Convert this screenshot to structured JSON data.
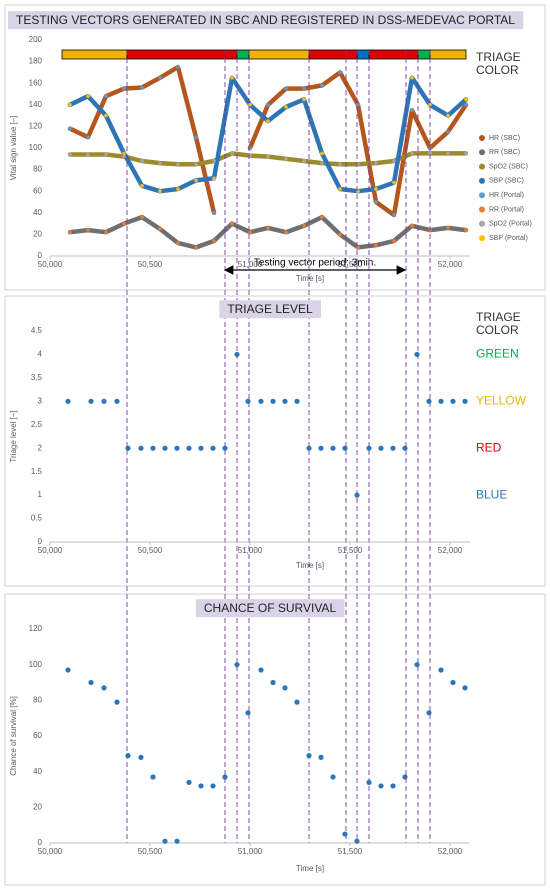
{
  "chart_data": [
    {
      "type": "line",
      "title": "TESTING VECTORS GENERATED IN SBC AND REGISTERED IN DSS-MEDEVAC PORTAL",
      "xlabel": "Time [s]",
      "ylabel": "Vital sign value [–]",
      "x": [
        50100,
        50190,
        50280,
        50370,
        50460,
        50550,
        50640,
        50730,
        50820,
        50910,
        51000,
        51090,
        51180,
        51270,
        51360,
        51450,
        51540,
        51630,
        51720,
        51810,
        51900,
        51990,
        52080
      ],
      "series": [
        {
          "name": "HR (SBC)",
          "color": "#b5561c",
          "style": "line",
          "values": [
            118,
            110,
            148,
            155,
            156,
            165,
            175,
            110,
            40,
            null,
            100,
            140,
            155,
            155,
            158,
            170,
            140,
            50,
            38,
            135,
            100,
            115,
            140
          ]
        },
        {
          "name": "RR (SBC)",
          "color": "#6f6f6f",
          "style": "line",
          "values": [
            22,
            24,
            22,
            30,
            36,
            25,
            12,
            8,
            14,
            30,
            22,
            26,
            22,
            28,
            36,
            20,
            8,
            10,
            14,
            28,
            24,
            26,
            24
          ]
        },
        {
          "name": "SpO2 (SBC)",
          "color": "#9c8a2d",
          "style": "line",
          "values": [
            94,
            94,
            94,
            92,
            88,
            86,
            85,
            85,
            88,
            95,
            93,
            92,
            90,
            88,
            86,
            85,
            85,
            86,
            88,
            95,
            95,
            95,
            95
          ]
        },
        {
          "name": "SBP (SBC)",
          "color": "#2e75b6",
          "style": "line",
          "values": [
            140,
            148,
            130,
            95,
            65,
            60,
            62,
            70,
            72,
            165,
            140,
            125,
            138,
            145,
            95,
            62,
            60,
            62,
            68,
            165,
            140,
            130,
            145
          ]
        },
        {
          "name": "HR (Portal)",
          "color": "#5b9bd5",
          "style": "dots",
          "values": [
            118,
            110,
            148,
            155,
            156,
            165,
            175,
            110,
            40,
            null,
            100,
            140,
            155,
            155,
            158,
            170,
            140,
            50,
            38,
            135,
            100,
            115,
            140
          ]
        },
        {
          "name": "RR (Portal)",
          "color": "#ed7d31",
          "style": "dots",
          "values": [
            22,
            24,
            22,
            30,
            36,
            25,
            12,
            8,
            14,
            30,
            22,
            26,
            22,
            28,
            36,
            20,
            8,
            10,
            14,
            28,
            24,
            26,
            24
          ]
        },
        {
          "name": "SpO2 (Portal)",
          "color": "#a5a5a5",
          "style": "dots",
          "values": [
            94,
            94,
            94,
            92,
            88,
            86,
            85,
            85,
            88,
            95,
            93,
            92,
            90,
            88,
            86,
            85,
            85,
            86,
            88,
            95,
            95,
            95,
            95
          ]
        },
        {
          "name": "SBP (Portal)",
          "color": "#ffc000",
          "style": "dots",
          "values": [
            140,
            148,
            130,
            95,
            65,
            60,
            62,
            70,
            72,
            165,
            140,
            125,
            138,
            145,
            95,
            62,
            60,
            62,
            68,
            165,
            140,
            130,
            145
          ]
        }
      ],
      "xlim": [
        50000,
        52100
      ],
      "ylim": [
        0,
        200
      ],
      "xticks": [
        {
          "value": 50000,
          "label": "50,000"
        },
        {
          "value": 50500,
          "label": "50,500"
        },
        {
          "value": 51000,
          "label": "51,000"
        },
        {
          "value": 51500,
          "label": "51,500"
        },
        {
          "value": 52000,
          "label": "52,000"
        }
      ],
      "yticks": [
        0,
        20,
        40,
        60,
        80,
        100,
        120,
        140,
        160,
        180,
        200
      ],
      "legend": "right",
      "side_label": "TRIAGE COLOR",
      "triage_bar": [
        {
          "start": 50060,
          "end": 50385,
          "color": "#f0b400"
        },
        {
          "start": 50385,
          "end": 50935,
          "color": "#e00000"
        },
        {
          "start": 50935,
          "end": 50995,
          "color": "#00b050"
        },
        {
          "start": 50995,
          "end": 51295,
          "color": "#f0b400"
        },
        {
          "start": 51295,
          "end": 51535,
          "color": "#e00000"
        },
        {
          "start": 51535,
          "end": 51595,
          "color": "#0070c0"
        },
        {
          "start": 51595,
          "end": 51840,
          "color": "#e00000"
        },
        {
          "start": 51840,
          "end": 51900,
          "color": "#00b050"
        },
        {
          "start": 51900,
          "end": 52080,
          "color": "#f0b400"
        }
      ],
      "event_x": [
        50385,
        50875,
        50935,
        50995,
        51295,
        51480,
        51535,
        51595,
        51780,
        51840,
        51900
      ],
      "annotation": {
        "text": "Testing vector period: 3min.",
        "x": [
          50875,
          51775
        ]
      }
    },
    {
      "type": "scatter",
      "title": "TRIAGE LEVEL",
      "xlabel": "Time [s]",
      "ylabel": "Triage level [–]",
      "x": [
        50090,
        50205,
        50270,
        50335,
        50390,
        50455,
        50515,
        50575,
        50635,
        50695,
        50755,
        50815,
        50875,
        50935,
        50990,
        51055,
        51115,
        51175,
        51235,
        51295,
        51355,
        51415,
        51475,
        51535,
        51595,
        51655,
        51715,
        51775,
        51835,
        51895,
        51955,
        52015,
        52075
      ],
      "values": [
        3,
        3,
        3,
        3,
        2,
        2,
        2,
        2,
        2,
        2,
        2,
        2,
        2,
        4,
        3,
        3,
        3,
        3,
        3,
        2,
        2,
        2,
        2,
        1,
        2,
        2,
        2,
        2,
        4,
        3,
        3,
        3,
        3
      ],
      "color": "#2e75b6",
      "xlim": [
        50000,
        52100
      ],
      "ylim": [
        0,
        4.5
      ],
      "xticks": [
        {
          "value": 50000,
          "label": "50,000"
        },
        {
          "value": 50500,
          "label": "50,500"
        },
        {
          "value": 51000,
          "label": "51,000"
        },
        {
          "value": 51500,
          "label": "51,500"
        },
        {
          "value": 52000,
          "label": "52,000"
        }
      ],
      "yticks": [
        0,
        0.5,
        1,
        1.5,
        2,
        2.5,
        3,
        3.5,
        4,
        4.5
      ],
      "side_label": "TRIAGE COLOR",
      "level_labels": [
        {
          "text": "GREEN",
          "value": 4,
          "color": "#00b050"
        },
        {
          "text": "YELLOW",
          "value": 3,
          "color": "#e6b800"
        },
        {
          "text": "RED",
          "value": 2,
          "color": "#e00000"
        },
        {
          "text": "BLUE",
          "value": 1,
          "color": "#2e75b6"
        }
      ]
    },
    {
      "type": "scatter",
      "title": "CHANCE OF SURVIVAL",
      "xlabel": "Time [s]",
      "ylabel": "Chance of survival [%]",
      "x": [
        50090,
        50205,
        50270,
        50335,
        50390,
        50455,
        50515,
        50575,
        50635,
        50695,
        50755,
        50815,
        50875,
        50935,
        50990,
        51055,
        51115,
        51175,
        51235,
        51295,
        51355,
        51415,
        51475,
        51535,
        51595,
        51655,
        51715,
        51775,
        51835,
        51895,
        51955,
        52015,
        52075
      ],
      "values": [
        97,
        90,
        87,
        79,
        49,
        48,
        37,
        1,
        1,
        34,
        32,
        32,
        37,
        100,
        73,
        97,
        90,
        87,
        79,
        49,
        48,
        37,
        5,
        1,
        34,
        32,
        32,
        37,
        100,
        73,
        97,
        90,
        87
      ],
      "color": "#2e75b6",
      "xlim": [
        50000,
        52100
      ],
      "ylim": [
        0,
        120
      ],
      "xticks": [
        {
          "value": 50000,
          "label": "50,000"
        },
        {
          "value": 50500,
          "label": "50,500"
        },
        {
          "value": 51000,
          "label": "51,000"
        },
        {
          "value": 51500,
          "label": "51,500"
        },
        {
          "value": 52000,
          "label": "52,000"
        }
      ],
      "yticks": [
        0,
        20,
        40,
        60,
        80,
        100,
        120
      ]
    }
  ]
}
